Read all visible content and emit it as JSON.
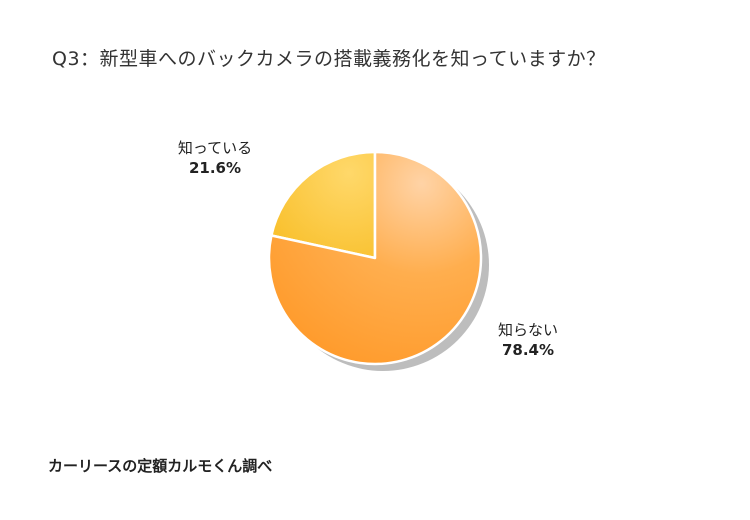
{
  "title": "Q3：新型車へのバックカメラの搭載義務化を知っていますか？",
  "source": "カーリースの定額カルモくん調べ",
  "chart_data": {
    "type": "pie",
    "title": "Q3：新型車へのバックカメラの搭載義務化を知っていますか？",
    "categories": [
      "知っている",
      "知らない"
    ],
    "values": [
      21.6,
      78.4
    ],
    "labels": [
      "21.6%",
      "78.4%"
    ],
    "colors": [
      "#FBC43A",
      "#FFA033"
    ],
    "start_angle": "12 o'clock, counter-clockwise for 知っている",
    "legend": "none (direct labels)"
  }
}
